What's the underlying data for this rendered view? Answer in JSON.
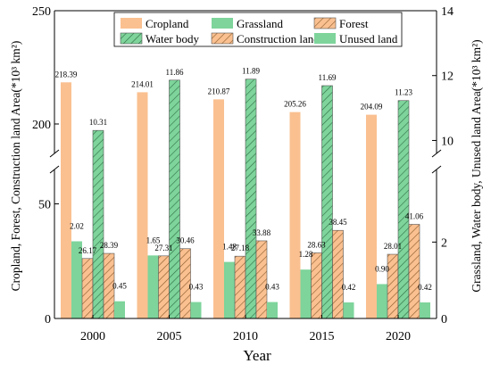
{
  "chart_data": {
    "type": "bar",
    "title": "",
    "xlabel": "Year",
    "ylabel_left": "Cropland, Forest, Construction land Area(*10³ km²)",
    "ylabel_right": "Grassland, Water body, Unused land Area(*10³ km²)",
    "categories": [
      "2000",
      "2005",
      "2010",
      "2015",
      "2020"
    ],
    "left_axis": {
      "lower_ticks": [
        "0",
        "50"
      ],
      "upper_ticks": [
        "200",
        "250"
      ],
      "lower_range": [
        0,
        65
      ],
      "upper_range": [
        187,
        250
      ]
    },
    "right_axis": {
      "lower_ticks": [
        "0",
        "2"
      ],
      "upper_ticks": [
        "10",
        "12",
        "14"
      ],
      "lower_range": [
        0,
        3.9
      ],
      "upper_range": [
        9.6,
        14
      ]
    },
    "series": [
      {
        "name": "Cropland",
        "axis": "left",
        "values": [
          218.39,
          214.01,
          210.87,
          205.26,
          204.09
        ],
        "labels": [
          "218.39",
          "214.01",
          "210.87",
          "205.26",
          "204.09"
        ],
        "color": "#FAC090",
        "pattern": "none"
      },
      {
        "name": "Grassland",
        "axis": "right",
        "values": [
          2.02,
          1.65,
          1.48,
          1.28,
          0.9
        ],
        "labels": [
          "2.02",
          "1.65",
          "1.48",
          "1.28",
          "0.90"
        ],
        "color": "#7ED49B",
        "pattern": "none"
      },
      {
        "name": "Forest",
        "axis": "left",
        "values": [
          26.17,
          27.31,
          27.18,
          28.63,
          28.01
        ],
        "labels": [
          "26.17",
          "27.31",
          "27.18",
          "28.63",
          "28.01"
        ],
        "color": "#FAC090",
        "pattern": "hatch"
      },
      {
        "name": "Water body",
        "axis": "right",
        "values": [
          10.31,
          11.86,
          11.89,
          11.69,
          11.23
        ],
        "labels": [
          "10.31",
          "11.86",
          "11.89",
          "11.69",
          "11.23"
        ],
        "color": "#7ED49B",
        "pattern": "hatch"
      },
      {
        "name": "Construction land",
        "axis": "left",
        "values": [
          28.39,
          30.46,
          33.88,
          38.45,
          41.06
        ],
        "labels": [
          "28.39",
          "30.46",
          "33.88",
          "38.45",
          "41.06"
        ],
        "color": "#FAC090",
        "pattern": "hatch"
      },
      {
        "name": "Unused land",
        "axis": "right",
        "values": [
          0.45,
          0.43,
          0.43,
          0.42,
          0.42
        ],
        "labels": [
          "0.45",
          "0.43",
          "0.43",
          "0.42",
          "0.42"
        ],
        "color": "#7ED49B",
        "pattern": "none"
      }
    ],
    "legend_order": [
      "Cropland",
      "Grassland",
      "Forest",
      "Water body",
      "Construction land",
      "Unused land"
    ],
    "legend_placement": "top-center",
    "grid": false,
    "axis_break": true
  }
}
